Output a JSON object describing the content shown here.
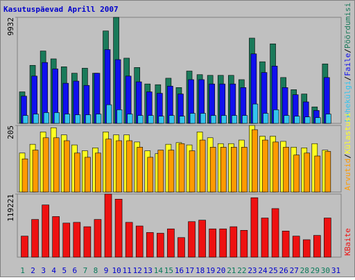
{
  "title": "Kasutuspäevad Aprill 2007",
  "legend_separator": "/",
  "chart_data": [
    {
      "type": "bar",
      "ylim": [
        0,
        9932
      ],
      "yticks": [
        9932
      ],
      "categories": [
        "1",
        "2",
        "3",
        "4",
        "5",
        "6",
        "7",
        "8",
        "9",
        "10",
        "11",
        "12",
        "13",
        "14",
        "15",
        "16",
        "17",
        "18",
        "19",
        "20",
        "21",
        "22",
        "23",
        "24",
        "25",
        "26",
        "27",
        "28",
        "29",
        "30",
        "31"
      ],
      "category_colors": [
        "#0a7a5a",
        "#0000cc",
        "#0000cc",
        "#0000cc",
        "#0000cc",
        "#0000cc",
        "#0a7a5a",
        "#0a7a5a",
        "#0000cc",
        "#0000cc",
        "#0000cc",
        "#0000cc",
        "#0000cc",
        "#0a7a5a",
        "#0a7a5a",
        "#0000cc",
        "#0000cc",
        "#0000cc",
        "#0000cc",
        "#0000cc",
        "#0a7a5a",
        "#0a7a5a",
        "#0000cc",
        "#0000cc",
        "#0000cc",
        "#0000cc",
        "#0000cc",
        "#0a7a5a",
        "#0a7a5a",
        "#0a7a5a",
        "#0000cc"
      ],
      "series": [
        {
          "name": "Pöördumisi",
          "color": "#1a7a5a",
          "values": [
            2953,
            5436,
            6778,
            6040,
            5301,
            4698,
            5167,
            4698,
            8657,
            9932,
            6107,
            5234,
            3691,
            3624,
            4228,
            3355,
            4899,
            4563,
            4496,
            4496,
            4496,
            4094,
            7986,
            5771,
            7449,
            4295,
            3154,
            2751,
            1543,
            5570,
            0
          ]
        },
        {
          "name": "Faile",
          "color": "#1010ee",
          "values": [
            2550,
            4429,
            5704,
            5100,
            3758,
            3959,
            3557,
            4698,
            6912,
            5972,
            4429,
            3892,
            2953,
            2818,
            3490,
            2751,
            4094,
            4094,
            3691,
            3691,
            3691,
            3355,
            6509,
            4765,
            5369,
            3355,
            2684,
            2013,
            1208,
            4295,
            0
          ]
        },
        {
          "name": "Lehekülgi",
          "color": "#33c4ee",
          "values": [
            738,
            872,
            1007,
            1007,
            872,
            805,
            805,
            872,
            1745,
            1275,
            872,
            738,
            738,
            671,
            738,
            671,
            939,
            939,
            738,
            738,
            738,
            738,
            1812,
            939,
            1275,
            738,
            671,
            604,
            537,
            872,
            0
          ]
        }
      ]
    },
    {
      "type": "bar",
      "ylim": [
        0,
        205
      ],
      "yticks": [
        205
      ],
      "series": [
        {
          "name": "Külastusi",
          "color": "#ffff22",
          "values": [
            120,
            147,
            185,
            198,
            176,
            145,
            127,
            136,
            185,
            176,
            176,
            154,
            127,
            118,
            147,
            152,
            145,
            185,
            167,
            149,
            149,
            160,
            205,
            172,
            172,
            156,
            138,
            136,
            149,
            129,
            0
          ]
        },
        {
          "name": "Arvutid",
          "color": "#ff9a00",
          "values": [
            102,
            129,
            167,
            167,
            158,
            120,
            107,
            120,
            163,
            158,
            158,
            138,
            107,
            129,
            129,
            149,
            127,
            160,
            138,
            138,
            138,
            138,
            192,
            160,
            154,
            138,
            114,
            120,
            111,
            125,
            0
          ]
        }
      ]
    },
    {
      "type": "bar",
      "ylim": [
        0,
        119221
      ],
      "yticks": [
        119221
      ],
      "series": [
        {
          "name": "KBaite",
          "color": "#ee1111",
          "values": [
            39730,
            71240,
            98640,
            76720,
            64390,
            65760,
            57540,
            71240,
            119221,
            109600,
            65760,
            58910,
            46580,
            45210,
            53430,
            36990,
            67130,
            69870,
            53430,
            53430,
            57540,
            50690,
            112340,
            73980,
            91790,
            49320,
            39730,
            32880,
            41100,
            73980,
            0
          ]
        }
      ]
    }
  ]
}
